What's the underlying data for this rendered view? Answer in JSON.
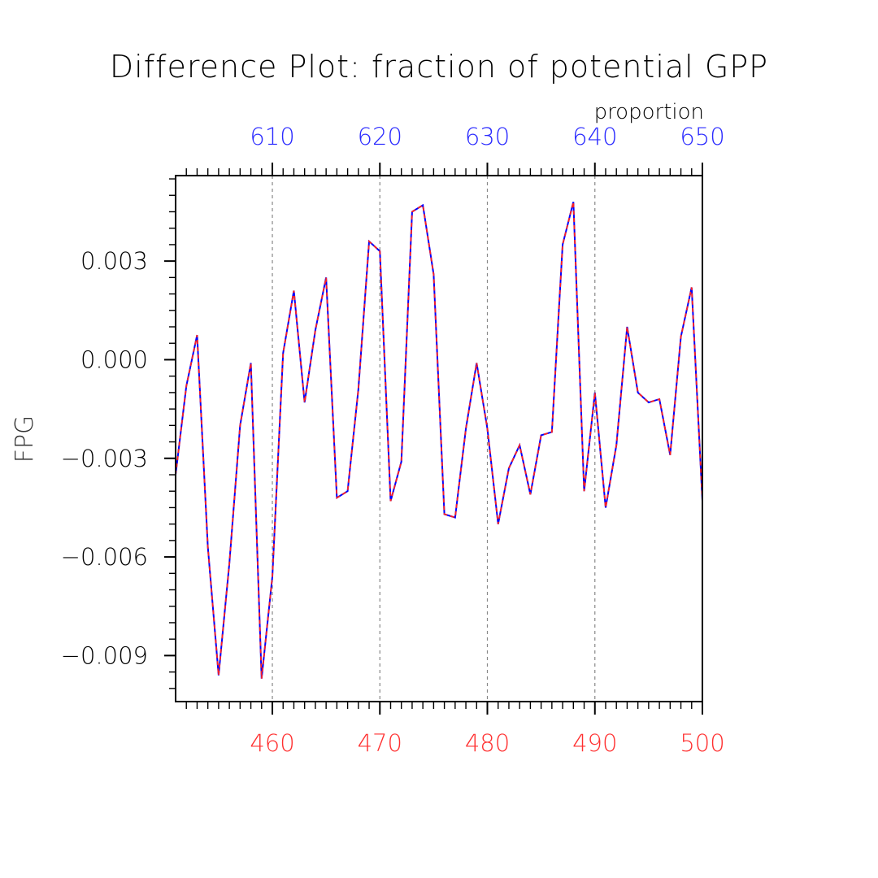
{
  "chart_data": {
    "type": "line",
    "title": "Difference Plot: fraction of potential GPP",
    "units_label": "proportion",
    "ylabel": "FPG",
    "xlim_bottom": [
      451,
      500
    ],
    "xlim_top": [
      601,
      650
    ],
    "ylim": [
      -0.0104,
      0.0056
    ],
    "bottom_ticks": [
      "460",
      "470",
      "480",
      "490",
      "500"
    ],
    "bottom_tick_values": [
      460,
      470,
      480,
      490,
      500
    ],
    "top_ticks": [
      "610",
      "620",
      "630",
      "640",
      "650"
    ],
    "top_tick_values": [
      610,
      620,
      630,
      640,
      650
    ],
    "y_ticks": [
      "0.003",
      "0.000",
      "−0.003",
      "−0.006",
      "−0.009"
    ],
    "y_tick_values": [
      0.003,
      0.0,
      -0.003,
      -0.006,
      -0.009
    ],
    "grid": "vertical dashed at major x ticks",
    "series": [
      {
        "color": "#0000ff",
        "style": "solid",
        "x": [
          451,
          452,
          453,
          454,
          455,
          456,
          457,
          458,
          459,
          460,
          461,
          462,
          463,
          464,
          465,
          466,
          467,
          468,
          469,
          470,
          471,
          472,
          473,
          474,
          475,
          476,
          477,
          478,
          479,
          480,
          481,
          482,
          483,
          484,
          485,
          486,
          487,
          488,
          489,
          490,
          491,
          492,
          493,
          494,
          495,
          496,
          497,
          498,
          499,
          500
        ],
        "values": [
          -0.0035,
          -0.0008,
          0.00075,
          -0.0057,
          -0.0096,
          -0.0062,
          -0.002,
          -0.0001,
          -0.0097,
          -0.0066,
          0.0002,
          0.0021,
          -0.0013,
          0.0009,
          0.0025,
          -0.0042,
          -0.004,
          -0.0009,
          0.0036,
          0.0033,
          -0.0043,
          -0.0031,
          0.0045,
          0.0047,
          0.0026,
          -0.0047,
          -0.0048,
          -0.0021,
          -0.0001,
          -0.0021,
          -0.005,
          -0.0033,
          -0.0026,
          -0.0041,
          -0.0023,
          -0.0022,
          0.0035,
          0.0048,
          -0.004,
          -0.001,
          -0.0045,
          -0.0026,
          0.001,
          -0.001,
          -0.0013,
          -0.0012,
          -0.0029,
          0.0007,
          0.0022,
          -0.0043
        ]
      },
      {
        "color": "#ff2020",
        "style": "dashed",
        "x": [
          451,
          452,
          453,
          454,
          455,
          456,
          457,
          458,
          459,
          460,
          461,
          462,
          463,
          464,
          465,
          466,
          467,
          468,
          469,
          470,
          471,
          472,
          473,
          474,
          475,
          476,
          477,
          478,
          479,
          480,
          481,
          482,
          483,
          484,
          485,
          486,
          487,
          488,
          489,
          490,
          491,
          492,
          493,
          494,
          495,
          496,
          497,
          498,
          499,
          500
        ],
        "values": [
          -0.0035,
          -0.0008,
          0.00075,
          -0.0057,
          -0.0096,
          -0.0062,
          -0.002,
          -0.0001,
          -0.0097,
          -0.0066,
          0.0002,
          0.0021,
          -0.0013,
          0.0009,
          0.0025,
          -0.0042,
          -0.004,
          -0.0009,
          0.0036,
          0.0033,
          -0.0043,
          -0.0031,
          0.0045,
          0.0047,
          0.0026,
          -0.0047,
          -0.0048,
          -0.0021,
          -0.0001,
          -0.0021,
          -0.005,
          -0.0033,
          -0.0026,
          -0.0041,
          -0.0023,
          -0.0022,
          0.0035,
          0.0048,
          -0.004,
          -0.001,
          -0.0045,
          -0.0026,
          0.001,
          -0.001,
          -0.0013,
          -0.0012,
          -0.0029,
          0.0007,
          0.0022,
          -0.0043
        ]
      }
    ],
    "colors": {
      "axis": "#000000",
      "top_tick_labels": "#2b2bff",
      "bottom_tick_labels": "#ff3030",
      "grid": "#888888"
    }
  }
}
